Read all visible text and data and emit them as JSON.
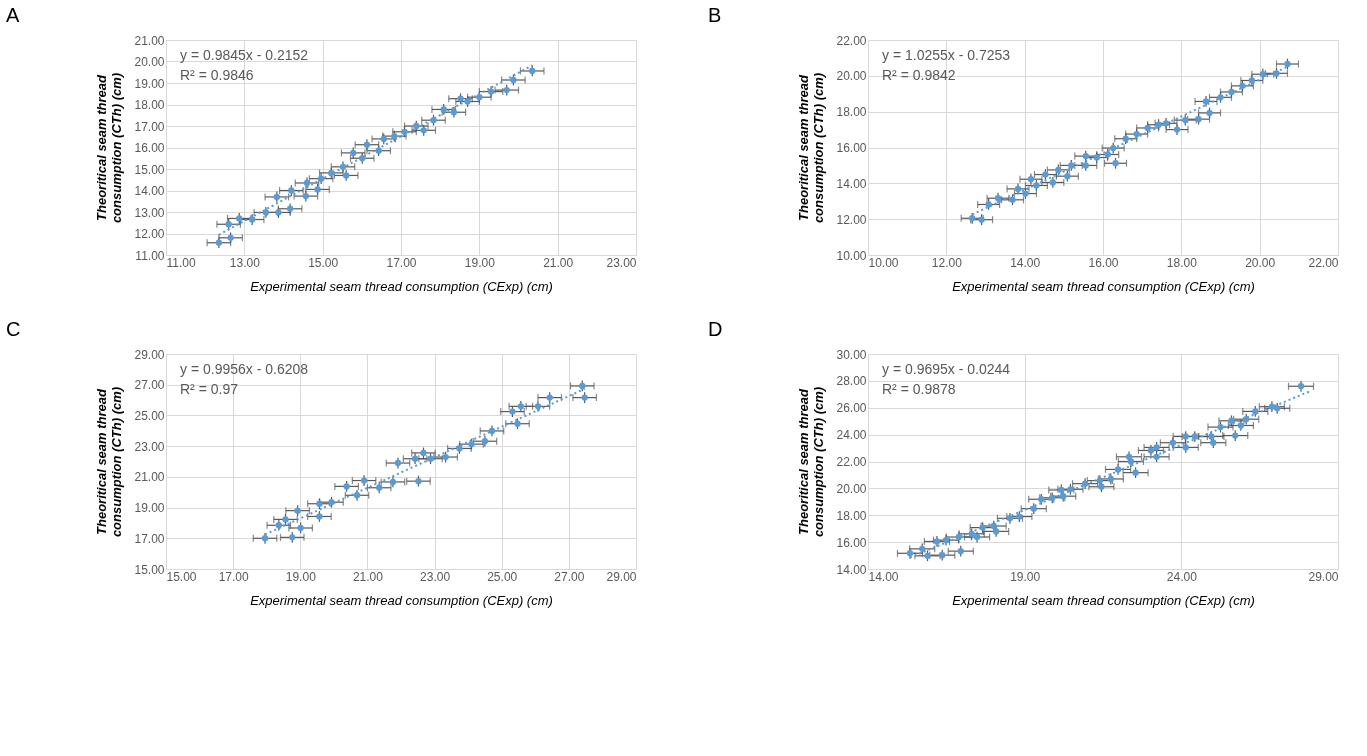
{
  "chart_data": [
    {
      "type": "scatter",
      "title": "A",
      "xlabel": "Experimental seam thread consumption (CExp) (cm)",
      "ylabel": "Theoritical  seam thread consumption (CTh) (cm)",
      "grid": true,
      "marker": "circle",
      "xlim": [
        11,
        23
      ],
      "xticks": [
        {
          "value": 11,
          "label": "11.00"
        },
        {
          "value": 13,
          "label": "13.00"
        },
        {
          "value": 15,
          "label": "15.00"
        },
        {
          "value": 17,
          "label": "17.00"
        },
        {
          "value": 19,
          "label": "19.00"
        },
        {
          "value": 21,
          "label": "21.00"
        },
        {
          "value": 23,
          "label": "23.00"
        }
      ],
      "ylim": [
        11,
        21
      ],
      "yticks": [
        {
          "value": 11,
          "label": "11.00"
        },
        {
          "value": 12,
          "label": "12.00"
        },
        {
          "value": 13,
          "label": "13.00"
        },
        {
          "value": 14,
          "label": "14.00"
        },
        {
          "value": 15,
          "label": "15.00"
        },
        {
          "value": 16,
          "label": "16.00"
        },
        {
          "value": 17,
          "label": "17.00"
        },
        {
          "value": 18,
          "label": "18.00"
        },
        {
          "value": 19,
          "label": "19.00"
        },
        {
          "value": 20,
          "label": "20.00"
        },
        {
          "value": 21,
          "label": "21.00"
        }
      ],
      "annotations": [
        "y = 0.9845x - 0.2152",
        "R² = 0.9846"
      ],
      "series": [
        {
          "color": "#5b9bd5",
          "x": [
            12.35,
            12.65,
            12.6,
            12.87,
            13.2,
            13.55,
            13.87,
            13.83,
            14.17,
            14.2,
            14.57,
            14.6,
            14.87,
            14.96,
            15.22,
            15.52,
            15.6,
            15.78,
            16.01,
            16.13,
            16.43,
            16.56,
            16.83,
            17.09,
            17.39,
            17.58,
            17.83,
            18.09,
            18.35,
            18.52,
            18.7,
            19.0,
            19.3,
            19.7,
            19.87,
            20.35
          ],
          "values": [
            11.57,
            11.8,
            12.43,
            12.7,
            12.65,
            12.98,
            12.98,
            13.7,
            13.15,
            14.0,
            13.74,
            14.35,
            14.05,
            14.55,
            14.82,
            15.1,
            14.7,
            15.75,
            15.5,
            16.13,
            15.85,
            16.4,
            16.53,
            16.73,
            17.0,
            16.8,
            17.27,
            17.77,
            17.64,
            18.27,
            18.14,
            18.34,
            18.6,
            18.67,
            19.14,
            19.56
          ],
          "xerrors": [
            0.3,
            0.3,
            0.3,
            0.3,
            0.3,
            0.3,
            0.3,
            0.3,
            0.3,
            0.3,
            0.3,
            0.3,
            0.3,
            0.3,
            0.3,
            0.3,
            0.3,
            0.3,
            0.3,
            0.3,
            0.3,
            0.3,
            0.3,
            0.3,
            0.3,
            0.3,
            0.3,
            0.3,
            0.3,
            0.3,
            0.3,
            0.3,
            0.3,
            0.3,
            0.3,
            0.3
          ],
          "errors": [
            0.25,
            0.25,
            0.25,
            0.25,
            0.25,
            0.25,
            0.25,
            0.25,
            0.25,
            0.25,
            0.25,
            0.25,
            0.25,
            0.25,
            0.25,
            0.25,
            0.25,
            0.25,
            0.25,
            0.25,
            0.25,
            0.25,
            0.25,
            0.25,
            0.25,
            0.25,
            0.25,
            0.25,
            0.25,
            0.25,
            0.25,
            0.25,
            0.25,
            0.25,
            0.25,
            0.25
          ]
        },
        {
          "type": "line",
          "marker": "none",
          "color": "#5b9bd5",
          "line_style": "dotted",
          "x": [
            12.35,
            20.35
          ],
          "values": [
            11.94,
            19.82
          ]
        }
      ]
    },
    {
      "type": "scatter",
      "title": "B",
      "xlabel": "Experimental  seam thread consumption (CExp) (cm)",
      "ylabel": "Theoritical  seam thread consumption (CTh) (cm)",
      "grid": true,
      "marker": "circle",
      "xlim": [
        10,
        22
      ],
      "xticks": [
        {
          "value": 10,
          "label": "10.00"
        },
        {
          "value": 12,
          "label": "12.00"
        },
        {
          "value": 14,
          "label": "14.00"
        },
        {
          "value": 16,
          "label": "16.00"
        },
        {
          "value": 18,
          "label": "18.00"
        },
        {
          "value": 20,
          "label": "20.00"
        },
        {
          "value": 22,
          "label": "22.00"
        }
      ],
      "ylim": [
        10,
        22
      ],
      "yticks": [
        {
          "value": 10,
          "label": "10.00"
        },
        {
          "value": 12,
          "label": "12.00"
        },
        {
          "value": 14,
          "label": "14.00"
        },
        {
          "value": 16,
          "label": "16.00"
        },
        {
          "value": 18,
          "label": "18.00"
        },
        {
          "value": 20,
          "label": "20.00"
        },
        {
          "value": 22,
          "label": "22.00"
        }
      ],
      "annotations": [
        "y = 1.0255x - 0.7253",
        "R² = 0.9842"
      ],
      "series": [
        {
          "color": "#5b9bd5",
          "x": [
            12.66,
            12.9,
            13.08,
            13.32,
            13.69,
            13.83,
            14.02,
            14.16,
            14.3,
            14.53,
            14.72,
            14.86,
            15.09,
            15.19,
            15.56,
            15.56,
            15.84,
            16.12,
            16.26,
            16.32,
            16.58,
            16.86,
            17.14,
            17.42,
            17.61,
            17.89,
            18.1,
            18.44,
            18.63,
            18.72,
            19.0,
            19.28,
            19.56,
            19.8,
            20.08,
            20.43,
            20.71
          ],
          "values": [
            12.05,
            11.97,
            12.82,
            13.17,
            13.08,
            13.69,
            13.43,
            14.23,
            13.88,
            14.49,
            14.05,
            14.75,
            14.4,
            15.0,
            15.52,
            15.0,
            15.44,
            15.61,
            15.97,
            15.12,
            16.49,
            16.75,
            17.09,
            17.27,
            17.35,
            17.0,
            17.53,
            17.58,
            18.57,
            17.93,
            18.8,
            19.1,
            19.44,
            19.74,
            20.09,
            20.14,
            20.66
          ],
          "xerrors": [
            0.28,
            0.28,
            0.28,
            0.28,
            0.28,
            0.28,
            0.28,
            0.28,
            0.28,
            0.28,
            0.28,
            0.28,
            0.28,
            0.28,
            0.28,
            0.28,
            0.28,
            0.28,
            0.28,
            0.28,
            0.28,
            0.28,
            0.28,
            0.28,
            0.28,
            0.28,
            0.28,
            0.28,
            0.28,
            0.28,
            0.28,
            0.28,
            0.28,
            0.28,
            0.28,
            0.28,
            0.28
          ],
          "errors": [
            0.3,
            0.3,
            0.3,
            0.3,
            0.3,
            0.3,
            0.3,
            0.3,
            0.3,
            0.3,
            0.3,
            0.3,
            0.3,
            0.3,
            0.3,
            0.3,
            0.3,
            0.3,
            0.3,
            0.3,
            0.3,
            0.3,
            0.3,
            0.3,
            0.3,
            0.3,
            0.3,
            0.3,
            0.3,
            0.3,
            0.3,
            0.3,
            0.3,
            0.3,
            0.3,
            0.3,
            0.3
          ]
        },
        {
          "type": "line",
          "marker": "none",
          "color": "#5b9bd5",
          "line_style": "dotted",
          "x": [
            12.66,
            20.71
          ],
          "values": [
            12.26,
            20.51
          ]
        }
      ]
    },
    {
      "type": "scatter",
      "title": "C",
      "xlabel": "Experimental  seam thread consumption (CExp) (cm)",
      "ylabel": "Theoritical  seam thread consumption (CTh) (cm)",
      "grid": true,
      "marker": "circle",
      "xlim": [
        15,
        29
      ],
      "xticks": [
        {
          "value": 15,
          "label": "15.00"
        },
        {
          "value": 17,
          "label": "17.00"
        },
        {
          "value": 19,
          "label": "19.00"
        },
        {
          "value": 21,
          "label": "21.00"
        },
        {
          "value": 23,
          "label": "23.00"
        },
        {
          "value": 25,
          "label": "25.00"
        },
        {
          "value": 27,
          "label": "27.00"
        },
        {
          "value": 29,
          "label": "29.00"
        }
      ],
      "ylim": [
        15,
        29
      ],
      "yticks": [
        {
          "value": 15,
          "label": "15.00"
        },
        {
          "value": 17,
          "label": "17.00"
        },
        {
          "value": 19,
          "label": "19.00"
        },
        {
          "value": 21,
          "label": "21.00"
        },
        {
          "value": 23,
          "label": "23.00"
        },
        {
          "value": 25,
          "label": "25.00"
        },
        {
          "value": 27,
          "label": "27.00"
        },
        {
          "value": 29,
          "label": "29.00"
        }
      ],
      "annotations": [
        "y = 0.9956x - 0.6208",
        "R² = 0.97"
      ],
      "series": [
        {
          "color": "#5b9bd5",
          "x": [
            17.95,
            18.36,
            18.76,
            18.56,
            18.92,
            19.01,
            19.57,
            19.57,
            19.93,
            20.38,
            20.69,
            20.9,
            21.35,
            21.76,
            21.91,
            22.52,
            22.42,
            22.67,
            22.88,
            23.33,
            23.74,
            24.1,
            24.5,
            24.71,
            25.32,
            25.47,
            25.57,
            26.08,
            26.43,
            27.4,
            27.47
          ],
          "values": [
            17.0,
            17.85,
            17.06,
            18.23,
            18.8,
            17.67,
            18.42,
            19.25,
            19.35,
            20.38,
            19.8,
            20.76,
            20.29,
            20.67,
            21.9,
            20.72,
            22.18,
            22.56,
            22.18,
            22.29,
            22.85,
            23.13,
            23.32,
            23.99,
            25.25,
            24.46,
            25.59,
            25.59,
            26.16,
            26.92,
            26.16
          ],
          "xerrors": [
            0.35,
            0.35,
            0.35,
            0.35,
            0.35,
            0.35,
            0.35,
            0.35,
            0.35,
            0.35,
            0.35,
            0.35,
            0.35,
            0.35,
            0.35,
            0.35,
            0.35,
            0.35,
            0.35,
            0.35,
            0.35,
            0.35,
            0.35,
            0.35,
            0.35,
            0.35,
            0.35,
            0.35,
            0.35,
            0.35,
            0.35
          ],
          "errors": [
            0.35,
            0.35,
            0.35,
            0.35,
            0.35,
            0.35,
            0.35,
            0.35,
            0.35,
            0.35,
            0.35,
            0.35,
            0.35,
            0.35,
            0.35,
            0.35,
            0.35,
            0.35,
            0.35,
            0.35,
            0.35,
            0.35,
            0.35,
            0.35,
            0.35,
            0.35,
            0.35,
            0.35,
            0.35,
            0.35,
            0.35
          ]
        },
        {
          "type": "line",
          "marker": "none",
          "color": "#5b9bd5",
          "line_style": "dotted",
          "x": [
            17.95,
            27.47
          ],
          "values": [
            17.25,
            26.73
          ]
        }
      ]
    },
    {
      "type": "scatter",
      "title": "D",
      "xlabel": "Experimental  seam thread consumption (CExp) (cm)",
      "ylabel": "Theoritical  seam thread consumption (CTh) (cm)",
      "grid": true,
      "marker": "circle",
      "xlim": [
        14,
        29
      ],
      "xticks": [
        {
          "value": 14,
          "label": "14.00"
        },
        {
          "value": 19,
          "label": "19.00"
        },
        {
          "value": 24,
          "label": "24.00"
        },
        {
          "value": 29,
          "label": "29.00"
        }
      ],
      "ylim": [
        14,
        30
      ],
      "yticks": [
        {
          "value": 14,
          "label": "14.00"
        },
        {
          "value": 16,
          "label": "16.00"
        },
        {
          "value": 18,
          "label": "18.00"
        },
        {
          "value": 20,
          "label": "20.00"
        },
        {
          "value": 22,
          "label": "22.00"
        },
        {
          "value": 24,
          "label": "24.00"
        },
        {
          "value": 26,
          "label": "26.00"
        },
        {
          "value": 28,
          "label": "28.00"
        },
        {
          "value": 30,
          "label": "30.00"
        }
      ],
      "annotations": [
        "y = 0.9695x - 0.0244",
        "R² = 0.9878"
      ],
      "series": [
        {
          "color": "#5b9bd5",
          "x": [
            15.34,
            15.73,
            15.9,
            16.37,
            16.2,
            16.49,
            16.96,
            16.9,
            17.31,
            17.48,
            17.66,
            18.01,
            18.09,
            18.53,
            18.83,
            19.29,
            19.53,
            19.88,
            20.17,
            20.23,
            20.46,
            20.93,
            21.4,
            21.45,
            21.75,
            21.98,
            22.33,
            22.39,
            22.54,
            23.03,
            23.21,
            23.21,
            23.73,
            24.14,
            24.14,
            24.43,
            24.96,
            25.02,
            25.25,
            25.6,
            25.72,
            25.9,
            26.07,
            26.36,
            26.89,
            27.06,
            27.82
          ],
          "values": [
            15.17,
            15.5,
            14.98,
            15.03,
            16.05,
            16.15,
            15.33,
            16.38,
            16.62,
            16.38,
            17.08,
            17.2,
            16.8,
            17.77,
            17.9,
            18.49,
            19.19,
            19.3,
            19.88,
            19.42,
            19.93,
            20.35,
            20.58,
            20.12,
            20.7,
            21.41,
            22.35,
            22.0,
            21.17,
            22.82,
            23.05,
            22.35,
            23.4,
            23.05,
            23.86,
            23.86,
            23.86,
            23.4,
            24.56,
            25.03,
            23.93,
            24.68,
            25.15,
            25.73,
            26.08,
            25.96,
            27.6
          ],
          "xerrors": [
            0.4,
            0.4,
            0.4,
            0.4,
            0.4,
            0.4,
            0.4,
            0.4,
            0.4,
            0.4,
            0.4,
            0.4,
            0.4,
            0.4,
            0.4,
            0.4,
            0.4,
            0.4,
            0.4,
            0.4,
            0.4,
            0.4,
            0.4,
            0.4,
            0.4,
            0.4,
            0.4,
            0.4,
            0.4,
            0.4,
            0.4,
            0.4,
            0.4,
            0.4,
            0.4,
            0.4,
            0.4,
            0.4,
            0.4,
            0.4,
            0.4,
            0.4,
            0.4,
            0.4,
            0.4,
            0.4,
            0.4
          ],
          "errors": [
            0.4,
            0.4,
            0.4,
            0.4,
            0.4,
            0.4,
            0.4,
            0.4,
            0.4,
            0.4,
            0.4,
            0.4,
            0.4,
            0.4,
            0.4,
            0.4,
            0.4,
            0.4,
            0.4,
            0.4,
            0.4,
            0.4,
            0.4,
            0.4,
            0.4,
            0.4,
            0.4,
            0.4,
            0.4,
            0.4,
            0.4,
            0.4,
            0.4,
            0.4,
            0.4,
            0.4,
            0.4,
            0.4,
            0.4,
            0.4,
            0.4,
            0.4,
            0.4,
            0.4,
            0.4,
            0.4,
            0.4
          ]
        },
        {
          "type": "line",
          "marker": "none",
          "color": "#5b9bd5",
          "line_style": "dotted",
          "x": [
            15.34,
            28.1
          ],
          "values": [
            14.85,
            27.22
          ]
        }
      ]
    }
  ]
}
